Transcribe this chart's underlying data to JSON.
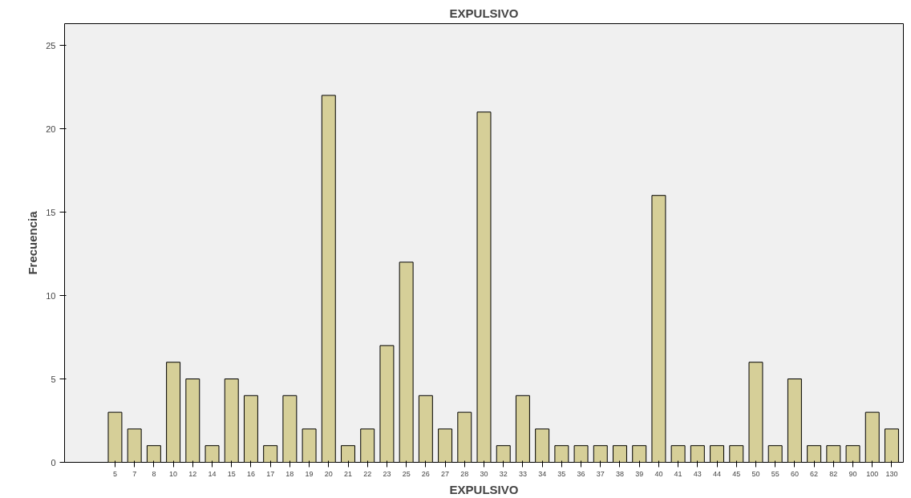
{
  "chart_data": {
    "type": "bar",
    "title": "EXPULSIVO",
    "xlabel": "EXPULSIVO",
    "ylabel": "Frecuencia",
    "categories": [
      "5",
      "7",
      "8",
      "10",
      "12",
      "14",
      "15",
      "16",
      "17",
      "18",
      "19",
      "20",
      "21",
      "22",
      "23",
      "25",
      "26",
      "27",
      "28",
      "30",
      "32",
      "33",
      "34",
      "35",
      "36",
      "37",
      "38",
      "39",
      "40",
      "41",
      "43",
      "44",
      "45",
      "50",
      "55",
      "60",
      "62",
      "82",
      "90",
      "100",
      "130"
    ],
    "values": [
      3,
      2,
      1,
      6,
      5,
      1,
      5,
      4,
      1,
      4,
      2,
      22,
      1,
      2,
      7,
      12,
      4,
      2,
      3,
      21,
      1,
      4,
      2,
      1,
      1,
      1,
      1,
      1,
      16,
      1,
      1,
      1,
      1,
      6,
      1,
      5,
      1,
      1,
      1,
      3,
      2
    ],
    "color": "#d6cf98",
    "ylim": [
      0,
      26.3
    ],
    "yticks": [
      0,
      5,
      10,
      15,
      20,
      25
    ],
    "grid": false
  }
}
